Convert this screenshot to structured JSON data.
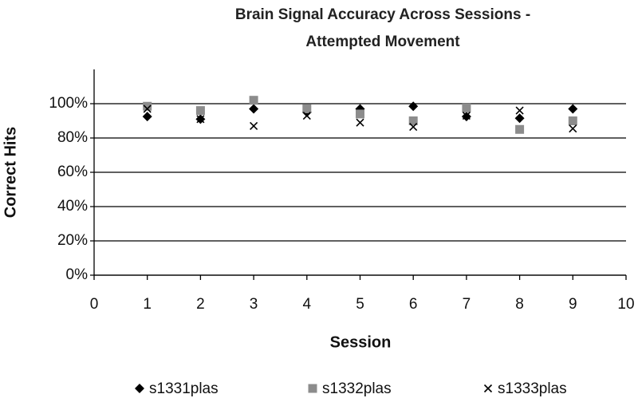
{
  "chart_data": {
    "type": "scatter",
    "title": "Brain Signal Accuracy Across Sessions - Attempted Movement",
    "xlabel": "Session",
    "ylabel": "Correct Hits",
    "series": [
      {
        "name": "s1331plas",
        "color": "#000000",
        "marker": "diamond",
        "x": [
          1,
          2,
          3,
          4,
          5,
          6,
          7,
          8,
          9
        ],
        "values": [
          92.5,
          91,
          97,
          95,
          97,
          98.5,
          92.5,
          91.5,
          97
        ]
      },
      {
        "name": "s1332plas",
        "color": "#8c8c8c",
        "marker": "square",
        "x": [
          1,
          2,
          3,
          4,
          5,
          6,
          7,
          8,
          9
        ],
        "values": [
          98.5,
          96,
          102,
          97,
          94,
          90,
          97.5,
          85,
          90
        ]
      },
      {
        "name": "s1333plas",
        "color": "#000000",
        "marker": "x",
        "x": [
          1,
          2,
          3,
          4,
          5,
          6,
          7,
          8,
          9
        ],
        "values": [
          97,
          91,
          87,
          93,
          89,
          86.5,
          93,
          96,
          85.5
        ]
      }
    ],
    "xlim": [
      0,
      10
    ],
    "xticks": [
      0,
      1,
      2,
      3,
      4,
      5,
      6,
      7,
      8,
      9,
      10
    ],
    "ylim": [
      0,
      120
    ],
    "yticks": [
      {
        "value": 0,
        "label": "0%"
      },
      {
        "value": 20,
        "label": "20%"
      },
      {
        "value": 40,
        "label": "40%"
      },
      {
        "value": 60,
        "label": "60%"
      },
      {
        "value": 80,
        "label": "80%"
      },
      {
        "value": 100,
        "label": "100%"
      }
    ],
    "grid": true,
    "legend": "bottom"
  }
}
